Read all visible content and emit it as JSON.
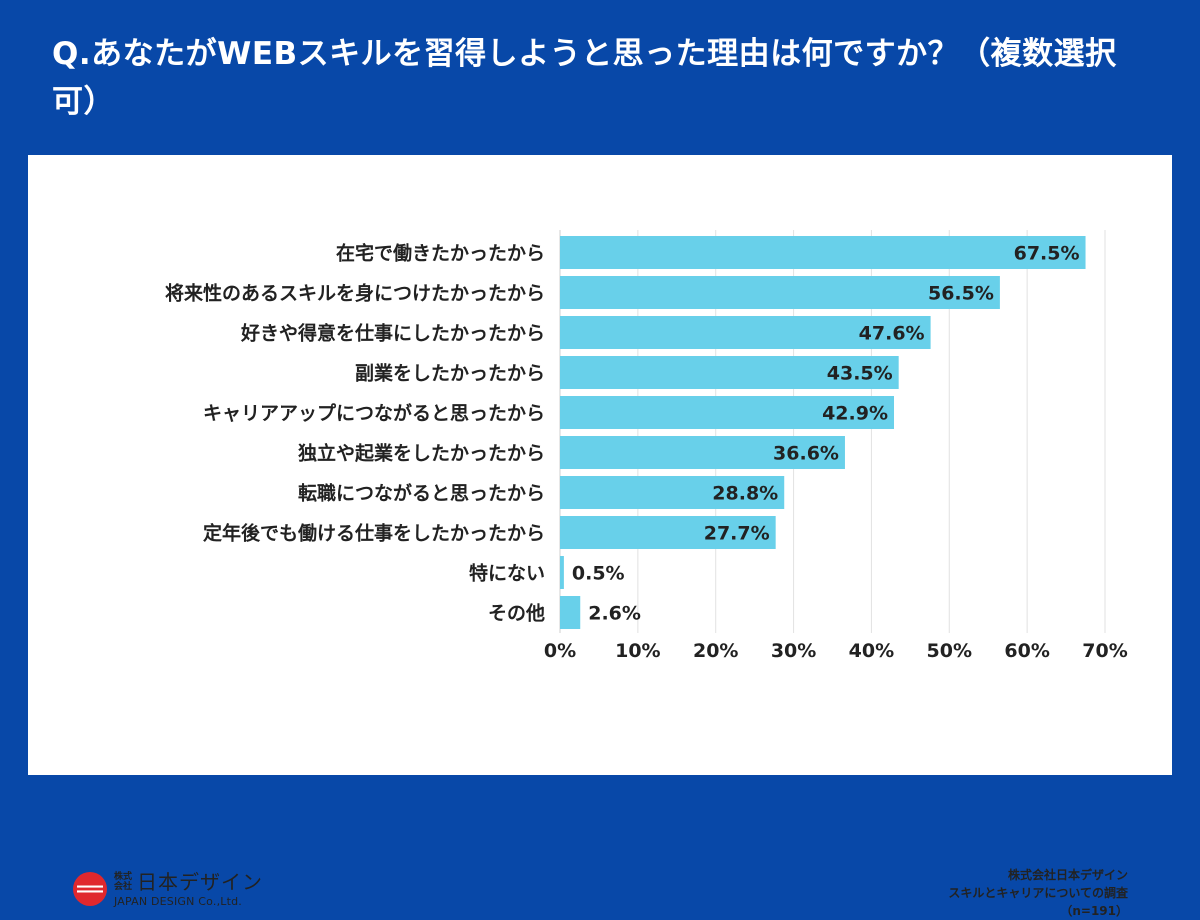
{
  "title": "Q.あなたがWEBスキルを習得しようと思った理由は何ですか？（複数選択可）",
  "colors": {
    "background": "#0848a8",
    "bar": "#68d0ea",
    "grid": "#e2e2e2",
    "text": "#222222",
    "logo_red": "#e0282e"
  },
  "chart_data": {
    "type": "bar",
    "orientation": "horizontal",
    "categories": [
      "在宅で働きたかったから",
      "将来性のあるスキルを身につけたかったから",
      "好きや得意を仕事にしたかったから",
      "副業をしたかったから",
      "キャリアアップにつながると思ったから",
      "独立や起業をしたかったから",
      "転職につながると思ったから",
      "定年後でも働ける仕事をしたかったから",
      "特にない",
      "その他"
    ],
    "values": [
      67.5,
      56.5,
      47.6,
      43.5,
      42.9,
      36.6,
      28.8,
      27.7,
      0.5,
      2.6
    ],
    "value_labels": [
      "67.5%",
      "56.5%",
      "47.6%",
      "43.5%",
      "42.9%",
      "36.6%",
      "28.8%",
      "27.7%",
      "0.5%",
      "2.6%"
    ],
    "xlim": [
      0,
      70
    ],
    "xticks": [
      0,
      10,
      20,
      30,
      40,
      50,
      60,
      70
    ],
    "xtick_labels": [
      "0%",
      "10%",
      "20%",
      "30%",
      "40%",
      "50%",
      "60%",
      "70%"
    ],
    "grid": true
  },
  "logo": {
    "kabu": "株式会社",
    "name_jp": "日本デザイン",
    "name_en": "JAPAN DESIGN Co.,Ltd."
  },
  "source": {
    "line1": "株式会社日本デザイン",
    "line2": "スキルとキャリアについての調査",
    "line3": "（n=191）"
  }
}
